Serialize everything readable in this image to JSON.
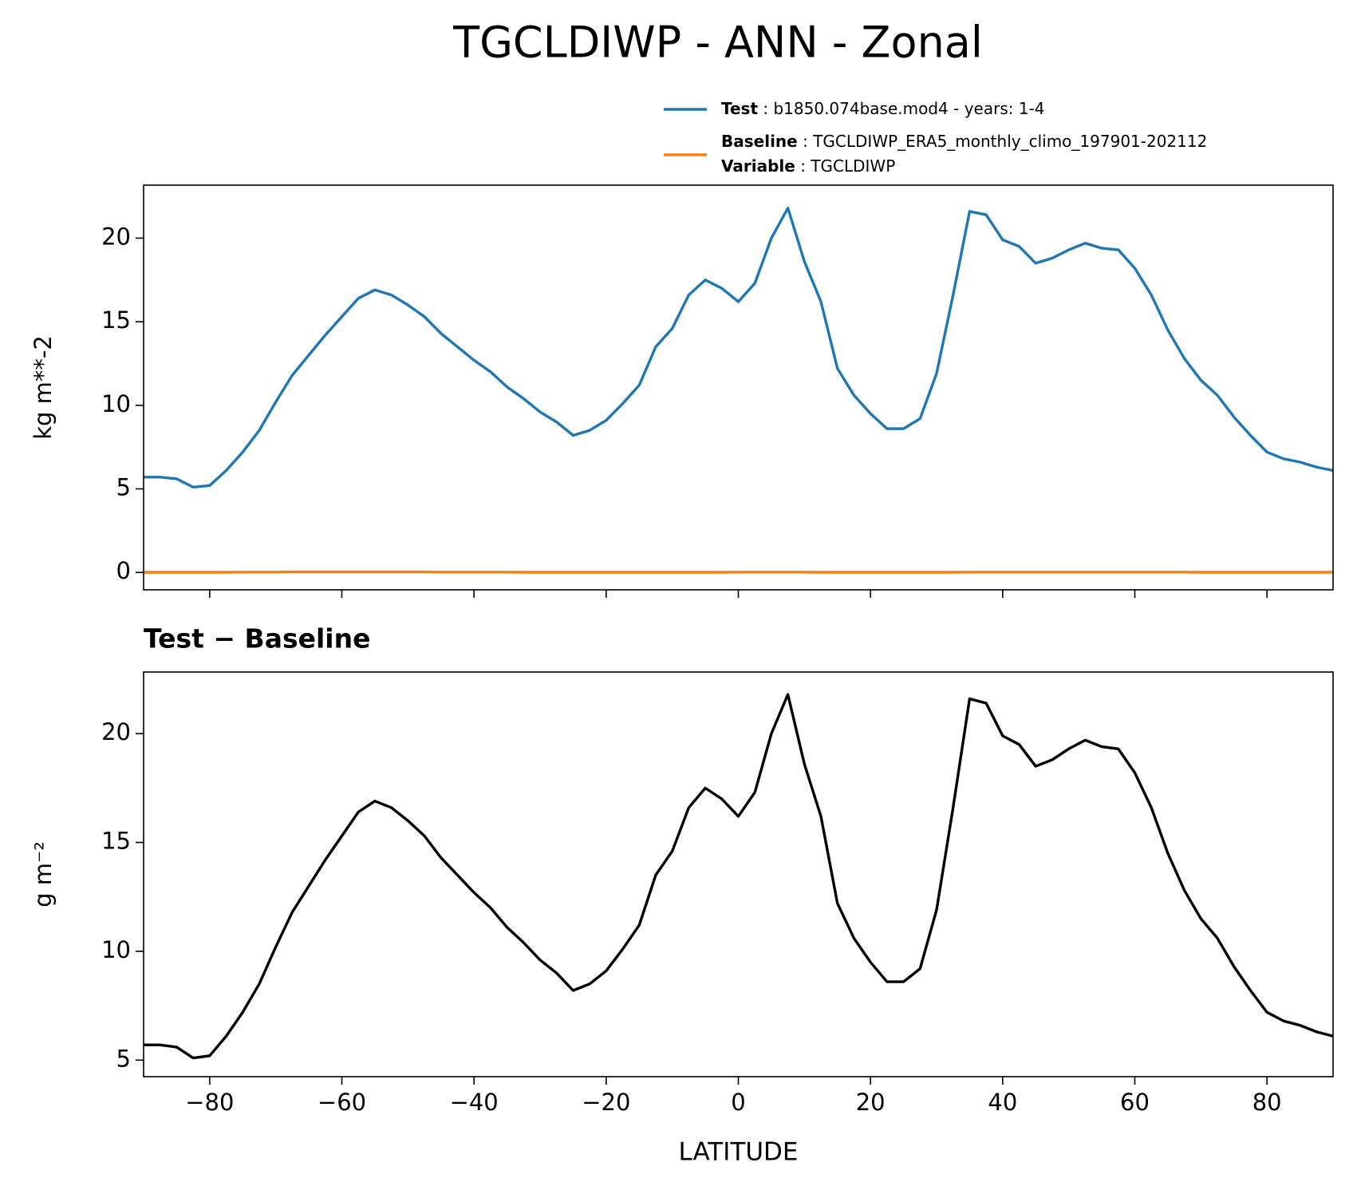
{
  "chart_data": [
    {
      "type": "line",
      "title": "TGCLDIWP - ANN - Zonal",
      "ylabel": "kg m**-2",
      "x": [
        -90,
        -87.5,
        -85,
        -82.5,
        -80,
        -77.5,
        -75,
        -72.5,
        -70,
        -67.5,
        -65,
        -62.5,
        -60,
        -57.5,
        -55,
        -52.5,
        -50,
        -47.5,
        -45,
        -42.5,
        -40,
        -37.5,
        -35,
        -32.5,
        -30,
        -27.5,
        -25,
        -22.5,
        -20,
        -17.5,
        -15,
        -12.5,
        -10,
        -7.5,
        -5,
        -2.5,
        0,
        2.5,
        5,
        7.5,
        10,
        12.5,
        15,
        17.5,
        20,
        22.5,
        25,
        27.5,
        30,
        32.5,
        35,
        37.5,
        40,
        42.5,
        45,
        47.5,
        50,
        52.5,
        55,
        57.5,
        60,
        62.5,
        65,
        67.5,
        70,
        72.5,
        75,
        77.5,
        80,
        82.5,
        85,
        87.5,
        90
      ],
      "series": [
        {
          "name": "Test",
          "description": "b1850.074base.mod4 - years: 1-4",
          "color": "#1f77b4",
          "values": [
            5.7,
            5.7,
            5.6,
            5.1,
            5.2,
            6.1,
            7.2,
            8.5,
            10.2,
            11.8,
            13.0,
            14.2,
            15.3,
            16.4,
            16.9,
            16.6,
            16.0,
            15.3,
            14.3,
            13.5,
            12.7,
            12.0,
            11.1,
            10.4,
            9.6,
            9.0,
            8.2,
            8.5,
            9.1,
            10.1,
            11.2,
            13.5,
            14.6,
            16.6,
            17.5,
            17.0,
            16.2,
            17.3,
            20.0,
            21.8,
            18.6,
            16.2,
            12.2,
            10.6,
            9.5,
            8.6,
            8.6,
            9.2,
            11.9,
            16.6,
            21.6,
            21.4,
            19.9,
            19.5,
            18.5,
            18.8,
            19.3,
            19.7,
            19.4,
            19.3,
            18.2,
            16.6,
            14.5,
            12.8,
            11.5,
            10.6,
            9.3,
            8.2,
            7.2,
            6.8,
            6.6,
            6.3,
            6.1
          ]
        },
        {
          "name": "Baseline",
          "description": "TGCLDIWP_ERA5_monthly_climo_197901-202112",
          "variable_label": "Variable",
          "variable": "TGCLDIWP",
          "color": "#ff7f0e",
          "values": [
            0.01,
            0.01,
            0.01,
            0.01,
            0.01,
            0.01,
            0.02,
            0.02,
            0.02,
            0.03,
            0.03,
            0.03,
            0.03,
            0.03,
            0.03,
            0.03,
            0.03,
            0.03,
            0.02,
            0.02,
            0.02,
            0.02,
            0.02,
            0.01,
            0.01,
            0.01,
            0.01,
            0.01,
            0.01,
            0.01,
            0.01,
            0.01,
            0.01,
            0.01,
            0.01,
            0.01,
            0.02,
            0.02,
            0.02,
            0.02,
            0.02,
            0.01,
            0.01,
            0.01,
            0.01,
            0.01,
            0.01,
            0.01,
            0.01,
            0.01,
            0.02,
            0.02,
            0.02,
            0.02,
            0.02,
            0.02,
            0.02,
            0.02,
            0.02,
            0.02,
            0.02,
            0.02,
            0.02,
            0.02,
            0.01,
            0.01,
            0.01,
            0.01,
            0.01,
            0.01,
            0.01,
            0.01,
            0.01
          ]
        }
      ],
      "legend_separator": ":",
      "xlim": [
        -90,
        90
      ],
      "xticks": [
        -80,
        -60,
        -40,
        -20,
        0,
        20,
        40,
        60,
        80
      ],
      "xtick_labels": false,
      "ylim": [
        -1.04,
        23.17
      ],
      "yticks": [
        0,
        5,
        10,
        15,
        20
      ]
    },
    {
      "type": "line",
      "title": "Test − Baseline",
      "ylabel": "g m⁻²",
      "xlabel": "LATITUDE",
      "x": [
        -90,
        -87.5,
        -85,
        -82.5,
        -80,
        -77.5,
        -75,
        -72.5,
        -70,
        -67.5,
        -65,
        -62.5,
        -60,
        -57.5,
        -55,
        -52.5,
        -50,
        -47.5,
        -45,
        -42.5,
        -40,
        -37.5,
        -35,
        -32.5,
        -30,
        -27.5,
        -25,
        -22.5,
        -20,
        -17.5,
        -15,
        -12.5,
        -10,
        -7.5,
        -5,
        -2.5,
        0,
        2.5,
        5,
        7.5,
        10,
        12.5,
        15,
        17.5,
        20,
        22.5,
        25,
        27.5,
        30,
        32.5,
        35,
        37.5,
        40,
        42.5,
        45,
        47.5,
        50,
        52.5,
        55,
        57.5,
        60,
        62.5,
        65,
        67.5,
        70,
        72.5,
        75,
        77.5,
        80,
        82.5,
        85,
        87.5,
        90
      ],
      "series": [
        {
          "color": "#000000",
          "values": [
            5.7,
            5.7,
            5.6,
            5.1,
            5.2,
            6.1,
            7.2,
            8.5,
            10.2,
            11.8,
            13.0,
            14.2,
            15.3,
            16.4,
            16.9,
            16.6,
            16.0,
            15.3,
            14.3,
            13.5,
            12.7,
            12.0,
            11.1,
            10.4,
            9.6,
            9.0,
            8.2,
            8.5,
            9.1,
            10.1,
            11.2,
            13.5,
            14.6,
            16.6,
            17.5,
            17.0,
            16.2,
            17.3,
            20.0,
            21.8,
            18.6,
            16.2,
            12.2,
            10.6,
            9.5,
            8.6,
            8.6,
            9.2,
            11.9,
            16.6,
            21.6,
            21.4,
            19.9,
            19.5,
            18.5,
            18.8,
            19.3,
            19.7,
            19.4,
            19.3,
            18.2,
            16.6,
            14.5,
            12.8,
            11.5,
            10.6,
            9.3,
            8.2,
            7.2,
            6.8,
            6.6,
            6.3,
            6.1
          ]
        }
      ],
      "xlim": [
        -90,
        90
      ],
      "xticks": [
        {
          "value": -80,
          "label": "−80"
        },
        {
          "value": -60,
          "label": "−60"
        },
        {
          "value": -40,
          "label": "−40"
        },
        {
          "value": -20,
          "label": "−20"
        },
        0,
        20,
        40,
        60,
        80
      ],
      "xtick_labels": true,
      "ylim": [
        4.24,
        22.83
      ],
      "yticks": [
        5,
        10,
        15,
        20
      ]
    }
  ]
}
